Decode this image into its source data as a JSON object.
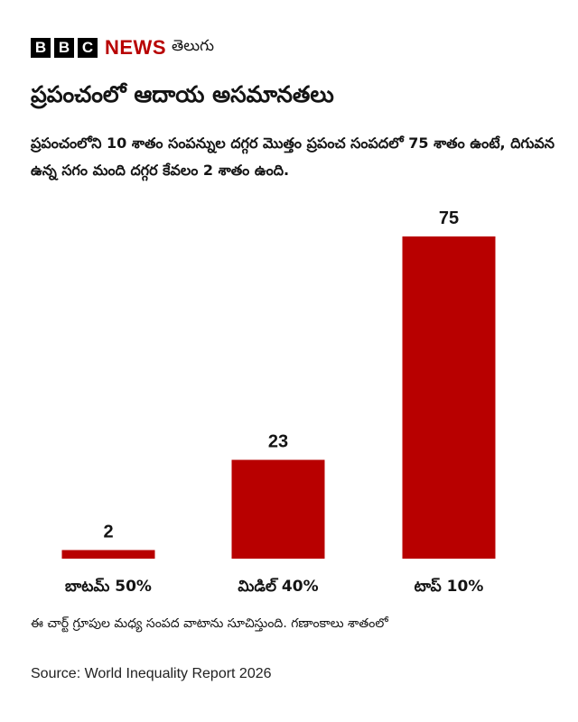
{
  "brand": {
    "logo_letters": [
      "B",
      "B",
      "C"
    ],
    "news": "NEWS",
    "language": "తెలుగు"
  },
  "title": "ప్రపంచంలో ఆదాయ అసమానతలు",
  "subtitle": "ప్రపంచంలోని 10 శాతం సంపన్నుల దగ్గర మొత్తం ప్రపంచ సంపదలో 75 శాతం ఉంటే, దిగువన ఉన్న సగం మంది దగ్గర కేవలం 2 శాతం ఉంది.",
  "colors": {
    "bar": "#b80000",
    "text": "#141414"
  },
  "chart_data": {
    "type": "bar",
    "categories": [
      "బాటమ్ 50%",
      "మిడిల్ 40%",
      "టాప్ 10%"
    ],
    "values": [
      2,
      23,
      75
    ],
    "data_labels": [
      "2",
      "23",
      "75"
    ],
    "ylim": [
      0,
      75
    ],
    "grid": false,
    "legend": "none"
  },
  "note": "ఈ చార్ట్ గ్రూపుల మధ్య సంపద వాటాను సూచిస్తుంది. గణాంకాలు శాతంలో",
  "source": "Source: World Inequality Report 2026"
}
